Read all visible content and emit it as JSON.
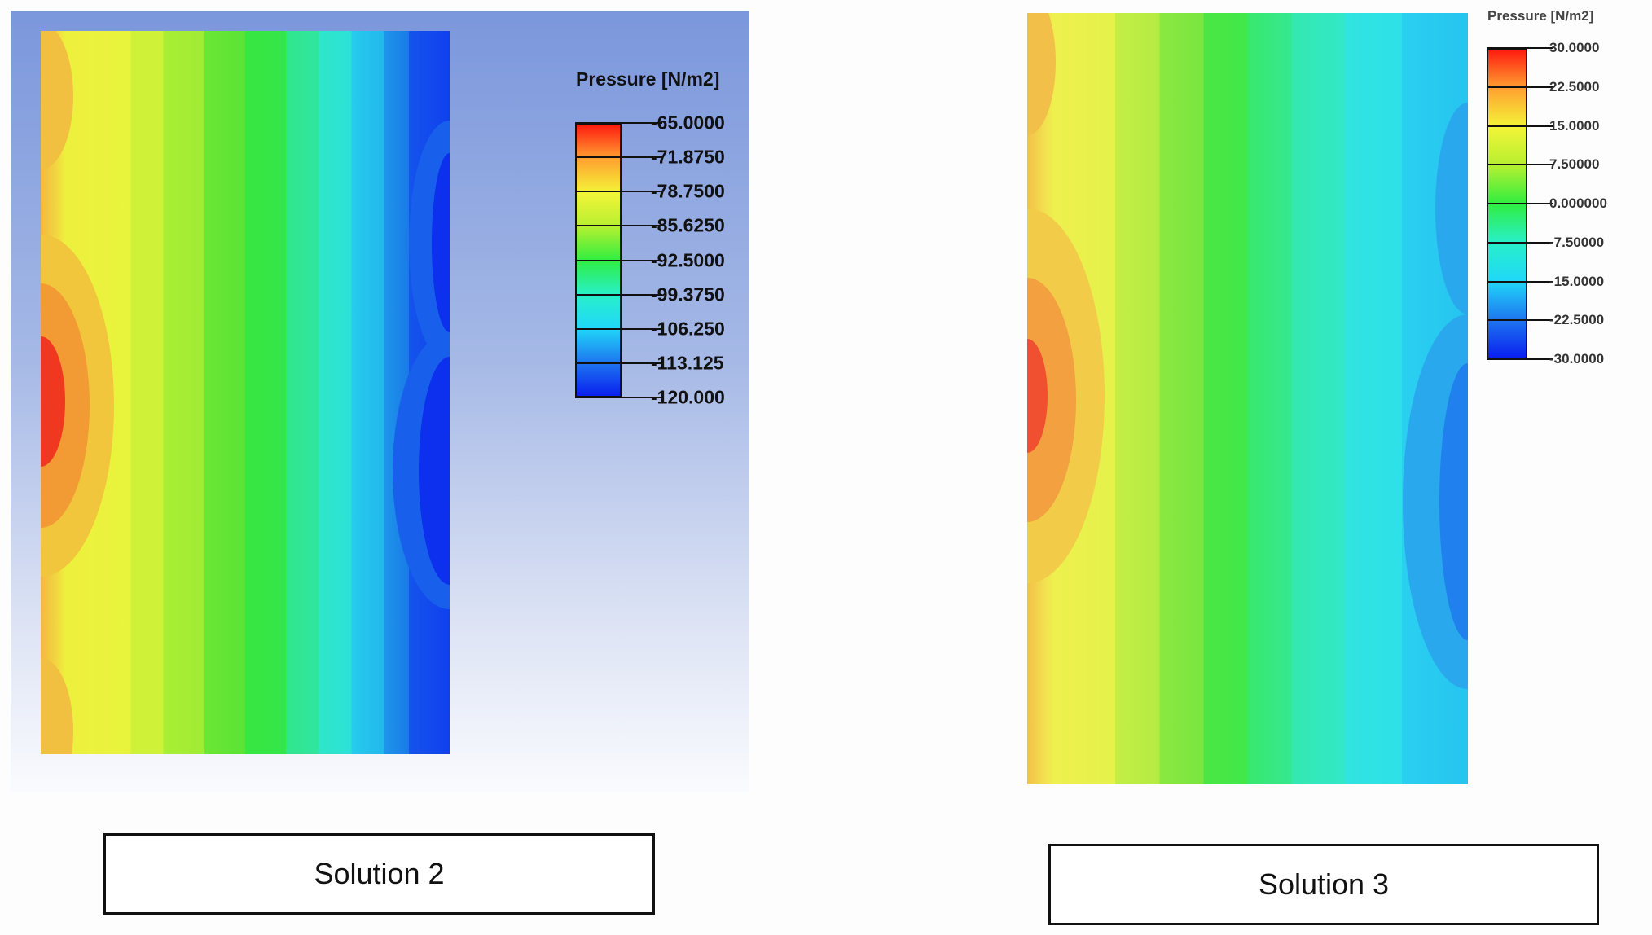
{
  "panels": [
    {
      "caption": "Solution 2",
      "legend_title": "Pressure [N/m2]",
      "legend_labels": [
        "-65.0000",
        "-71.8750",
        "-78.7500",
        "-85.6250",
        "-92.5000",
        "-99.3750",
        "-106.250",
        "-113.125",
        "-120.000"
      ],
      "legend_colors": [
        "#ff1a10",
        "#ffa030",
        "#f4f438",
        "#b6f030",
        "#30ee40",
        "#28f0c8",
        "#20d8f8",
        "#1e78f0",
        "#0a20ee"
      ]
    },
    {
      "caption": "Solution 3",
      "legend_title": "Pressure [N/m2]",
      "legend_labels": [
        "30.0000",
        "22.5000",
        "15.0000",
        "7.50000",
        "0.000000",
        "-7.50000",
        "-15.0000",
        "-22.5000",
        "-30.0000"
      ],
      "legend_colors": [
        "#ff1a10",
        "#ffa030",
        "#f4f438",
        "#b6f030",
        "#30ee40",
        "#28f0c8",
        "#20d8f8",
        "#1e78f0",
        "#0a20ee"
      ]
    }
  ]
}
